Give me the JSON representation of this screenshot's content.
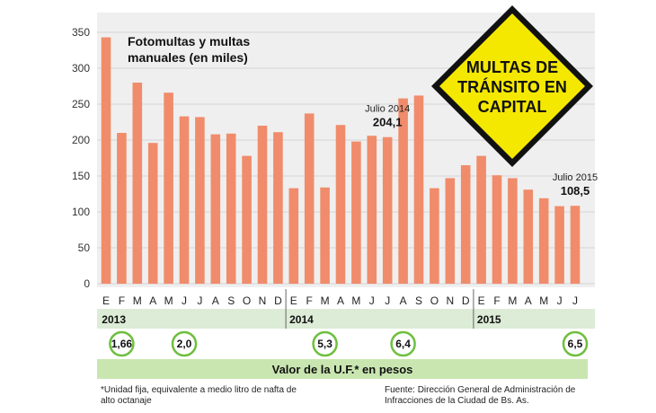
{
  "chart_data": {
    "type": "bar",
    "title_lines": [
      "Fotomultas y multas",
      "manuales (en miles)"
    ],
    "months": [
      "E",
      "F",
      "M",
      "A",
      "M",
      "J",
      "J",
      "A",
      "S",
      "O",
      "N",
      "D",
      "E",
      "F",
      "M",
      "A",
      "M",
      "J",
      "J",
      "A",
      "S",
      "O",
      "N",
      "D",
      "E",
      "F",
      "M",
      "A",
      "M",
      "J",
      "J"
    ],
    "years": [
      {
        "label": "2013",
        "start_index": 0
      },
      {
        "label": "2014",
        "start_index": 12
      },
      {
        "label": "2015",
        "start_index": 24
      }
    ],
    "values": [
      343,
      210,
      280,
      196,
      266,
      233,
      232,
      208,
      209,
      178,
      220,
      211,
      133,
      237,
      134,
      221,
      198,
      206,
      204.1,
      258,
      262,
      133,
      147,
      165,
      178,
      151,
      147,
      131,
      119,
      108,
      108.5
    ],
    "yticks": [
      0,
      50,
      100,
      150,
      200,
      250,
      300,
      350
    ],
    "ylim": [
      0,
      350
    ],
    "bar_color": "#f08c6b",
    "grid": true,
    "annotations": [
      {
        "index": 18,
        "label": "Julio 2014",
        "value_label": "204,1"
      },
      {
        "index": 30,
        "label": "Julio 2015",
        "value_label": "108,5"
      }
    ]
  },
  "sign": {
    "lines": [
      "MULTAS DE",
      "TRÁNSITO EN",
      "CAPITAL"
    ],
    "color": "#f5e800"
  },
  "uf": {
    "label": "Valor de la U.F.* en pesos",
    "markers": [
      {
        "index": 1,
        "value": "1,66"
      },
      {
        "index": 5,
        "value": "2,0"
      },
      {
        "index": 14,
        "value": "5,3"
      },
      {
        "index": 19,
        "value": "6,4"
      },
      {
        "index": 30,
        "value": "6,5"
      }
    ],
    "color": "#c9e6b0"
  },
  "footnote": "*Unidad fija, equivalente a medio litro de nafta de alto octanaje",
  "source": "Fuente: Dirección General de Administración de Infracciones de la Ciudad de Bs. As."
}
